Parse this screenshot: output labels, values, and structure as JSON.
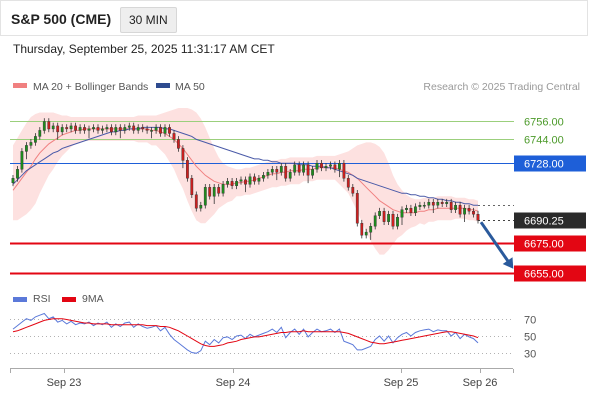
{
  "header": {
    "symbol": "S&P 500 (CME)",
    "timeframe": "30 MIN",
    "datetime": "Thursday, September 25, 2025 11:31:17 AM CET"
  },
  "colors": {
    "candle_up": "#1d8c1d",
    "candle_down": "#cc1f1f",
    "bollinger_fill": "#fde1e0",
    "ma20": "#f08080",
    "ma50": "#4a5aa8",
    "resistance_green": "#9bcf7c",
    "pivot_blue": "#1e5fd8",
    "support_red": "#e30613",
    "last_price_bg": "#2b2b2b",
    "arrow": "#2a5a9c",
    "rsi": "#5b79d9",
    "rsi_ma": "#e30613"
  },
  "chart_data": [
    {
      "type": "candlestick",
      "title": "",
      "legend": [
        {
          "name": "MA 20 + Bollinger Bands",
          "color": "#f08080"
        },
        {
          "name": "MA 50",
          "color": "#2e4b8f"
        }
      ],
      "copyright": "Research © 2025 Trading Central",
      "ylim": [
        6650,
        6765
      ],
      "x_ticks": [
        "Sep 23",
        "Sep 24",
        "Sep 25",
        "Sep 26"
      ],
      "levels": [
        {
          "value": 6756.0,
          "label": "6756.00",
          "kind": "resistance"
        },
        {
          "value": 6744.0,
          "label": "6744.00",
          "kind": "resistance"
        },
        {
          "value": 6728.0,
          "label": "6728.00",
          "kind": "pivot"
        },
        {
          "value": 6690.25,
          "label": "6690.25",
          "kind": "last"
        },
        {
          "value": 6675.0,
          "label": "6675.00",
          "kind": "support"
        },
        {
          "value": 6655.0,
          "label": "6655.00",
          "kind": "support"
        }
      ],
      "projection": {
        "from": 6690,
        "to": 6657
      },
      "close_series": [
        6718,
        6724,
        6736,
        6740,
        6742,
        6746,
        6750,
        6756,
        6751,
        6753,
        6749,
        6752,
        6751,
        6753,
        6750,
        6752,
        6750,
        6751,
        6752,
        6750,
        6751,
        6752,
        6749,
        6752,
        6750,
        6752,
        6753,
        6750,
        6752,
        6751,
        6750,
        6750,
        6752,
        6748,
        6752,
        6748,
        6744,
        6738,
        6730,
        6718,
        6707,
        6698,
        6700,
        6712,
        6706,
        6712,
        6708,
        6714,
        6716,
        6713,
        6716,
        6717,
        6714,
        6719,
        6716,
        6718,
        6720,
        6722,
        6724,
        6722,
        6726,
        6718,
        6722,
        6727,
        6722,
        6727,
        6720,
        6724,
        6728,
        6725,
        6726,
        6727,
        6724,
        6728,
        6718,
        6712,
        6708,
        6688,
        6680,
        6682,
        6686,
        6693,
        6696,
        6689,
        6694,
        6686,
        6692,
        6697,
        6698,
        6695,
        6699,
        6700,
        6700,
        6702,
        6700,
        6702,
        6701,
        6702,
        6697,
        6700,
        6694,
        6698,
        6696,
        6694,
        6690
      ],
      "ma20_series": [
        6710,
        6714,
        6718,
        6722,
        6726,
        6731,
        6735,
        6738,
        6741,
        6743,
        6745,
        6747,
        6748,
        6749,
        6750,
        6750,
        6751,
        6751,
        6751,
        6751,
        6751,
        6751,
        6751,
        6751,
        6751,
        6751,
        6751,
        6751,
        6751,
        6751,
        6751,
        6750,
        6750,
        6749,
        6748,
        6746,
        6744,
        6741,
        6738,
        6734,
        6730,
        6726,
        6723,
        6720,
        6718,
        6716,
        6715,
        6714,
        6714,
        6714,
        6715,
        6715,
        6716,
        6716,
        6717,
        6718,
        6719,
        6720,
        6721,
        6721,
        6722,
        6722,
        6723,
        6723,
        6723,
        6724,
        6724,
        6724,
        6725,
        6725,
        6725,
        6725,
        6725,
        6724,
        6723,
        6722,
        6720,
        6718,
        6715,
        6712,
        6709,
        6706,
        6703,
        6701,
        6699,
        6697,
        6696,
        6695,
        6695,
        6695,
        6695,
        6696,
        6696,
        6697,
        6697,
        6698,
        6698,
        6698,
        6698,
        6698,
        6698,
        6698,
        6697,
        6697,
        6696
      ],
      "ma50_series": [
        6714,
        6717,
        6720,
        6723,
        6725,
        6727,
        6729,
        6731,
        6733,
        6735,
        6736,
        6738,
        6739,
        6740,
        6741,
        6742,
        6743,
        6744,
        6745,
        6746,
        6747,
        6748,
        6749,
        6749,
        6750,
        6750,
        6751,
        6751,
        6751,
        6752,
        6752,
        6752,
        6752,
        6752,
        6751,
        6751,
        6750,
        6749,
        6748,
        6747,
        6746,
        6744,
        6743,
        6742,
        6741,
        6740,
        6739,
        6738,
        6737,
        6736,
        6735,
        6734,
        6733,
        6732,
        6731,
        6731,
        6730,
        6730,
        6729,
        6729,
        6728,
        6728,
        6728,
        6728,
        6727,
        6727,
        6727,
        6726,
        6726,
        6726,
        6725,
        6725,
        6724,
        6723,
        6722,
        6721,
        6720,
        6718,
        6717,
        6716,
        6715,
        6714,
        6713,
        6712,
        6711,
        6710,
        6709,
        6708,
        6708,
        6707,
        6707,
        6706,
        6706,
        6705,
        6705,
        6704,
        6704,
        6703,
        6703,
        6702,
        6702,
        6701,
        6701,
        6700,
        6700
      ],
      "bollinger_upper": [
        6740,
        6745,
        6750,
        6755,
        6759,
        6761,
        6762,
        6762,
        6762,
        6762,
        6761,
        6760,
        6760,
        6759,
        6759,
        6759,
        6759,
        6759,
        6759,
        6759,
        6759,
        6759,
        6759,
        6759,
        6759,
        6759,
        6759,
        6759,
        6760,
        6760,
        6760,
        6760,
        6760,
        6761,
        6762,
        6763,
        6764,
        6765,
        6765,
        6765,
        6764,
        6762,
        6758,
        6752,
        6745,
        6738,
        6732,
        6728,
        6726,
        6725,
        6724,
        6724,
        6725,
        6725,
        6726,
        6727,
        6728,
        6729,
        6730,
        6730,
        6731,
        6731,
        6732,
        6732,
        6732,
        6732,
        6732,
        6732,
        6733,
        6733,
        6733,
        6733,
        6733,
        6734,
        6735,
        6736,
        6738,
        6740,
        6741,
        6742,
        6742,
        6741,
        6739,
        6735,
        6728,
        6720,
        6714,
        6710,
        6707,
        6705,
        6704,
        6704,
        6705,
        6705,
        6705,
        6706,
        6706,
        6706,
        6706,
        6705,
        6705,
        6705,
        6704,
        6704,
        6703
      ],
      "bollinger_lower": [
        6690,
        6690,
        6692,
        6694,
        6697,
        6701,
        6708,
        6714,
        6720,
        6724,
        6729,
        6733,
        6736,
        6739,
        6741,
        6742,
        6743,
        6743,
        6743,
        6743,
        6743,
        6743,
        6743,
        6743,
        6743,
        6743,
        6743,
        6743,
        6742,
        6742,
        6742,
        6740,
        6740,
        6737,
        6734,
        6729,
        6724,
        6717,
        6711,
        6703,
        6696,
        6690,
        6688,
        6688,
        6691,
        6694,
        6698,
        6700,
        6702,
        6703,
        6706,
        6706,
        6707,
        6707,
        6708,
        6709,
        6710,
        6711,
        6712,
        6712,
        6713,
        6713,
        6714,
        6714,
        6714,
        6716,
        6716,
        6716,
        6717,
        6717,
        6717,
        6717,
        6717,
        6714,
        6711,
        6708,
        6702,
        6696,
        6689,
        6682,
        6676,
        6671,
        6667,
        6667,
        6670,
        6674,
        6678,
        6680,
        6683,
        6685,
        6686,
        6688,
        6687,
        6689,
        6689,
        6690,
        6690,
        6690,
        6690,
        6691,
        6691,
        6691,
        6690,
        6690,
        6689
      ]
    },
    {
      "type": "line",
      "title": "",
      "legend": [
        {
          "name": "RSI",
          "color": "#5b79d9"
        },
        {
          "name": "9MA",
          "color": "#e30613"
        }
      ],
      "ylim": [
        20,
        80
      ],
      "y_ticks": [
        {
          "value": 70,
          "label": "70"
        },
        {
          "value": 50,
          "label": "50"
        },
        {
          "value": 30,
          "label": "30"
        }
      ],
      "series": [
        {
          "name": "RSI",
          "values": [
            58,
            62,
            66,
            70,
            68,
            72,
            74,
            76,
            70,
            72,
            66,
            68,
            64,
            67,
            63,
            65,
            64,
            66,
            62,
            65,
            63,
            66,
            60,
            64,
            61,
            65,
            66,
            60,
            64,
            61,
            59,
            60,
            62,
            56,
            60,
            52,
            46,
            42,
            38,
            34,
            31,
            30,
            33,
            44,
            40,
            46,
            42,
            48,
            49,
            46,
            50,
            51,
            47,
            52,
            49,
            51,
            53,
            55,
            58,
            54,
            60,
            48,
            54,
            58,
            52,
            58,
            49,
            54,
            58,
            55,
            56,
            58,
            54,
            58,
            44,
            42,
            40,
            34,
            34,
            36,
            38,
            46,
            50,
            44,
            50,
            42,
            48,
            52,
            54,
            50,
            54,
            56,
            57,
            58,
            55,
            57,
            56,
            56,
            50,
            54,
            47,
            52,
            49,
            47,
            42
          ]
        },
        {
          "name": "9MA",
          "values": [
            55,
            56,
            58,
            60,
            62,
            64,
            66,
            68,
            69,
            70,
            70,
            70,
            69,
            68,
            67,
            66,
            65,
            65,
            64,
            64,
            64,
            64,
            63,
            63,
            63,
            63,
            63,
            63,
            63,
            63,
            62,
            62,
            62,
            61,
            61,
            60,
            58,
            56,
            53,
            50,
            47,
            44,
            41,
            39,
            38,
            38,
            39,
            40,
            42,
            43,
            44,
            46,
            47,
            48,
            49,
            49,
            50,
            51,
            52,
            53,
            54,
            54,
            55,
            55,
            55,
            56,
            55,
            55,
            55,
            55,
            55,
            55,
            55,
            55,
            54,
            53,
            51,
            49,
            47,
            45,
            43,
            42,
            41,
            41,
            42,
            43,
            44,
            45,
            46,
            47,
            48,
            49,
            50,
            51,
            52,
            53,
            54,
            55,
            55,
            54,
            53,
            52,
            51,
            50,
            48
          ]
        }
      ]
    }
  ]
}
